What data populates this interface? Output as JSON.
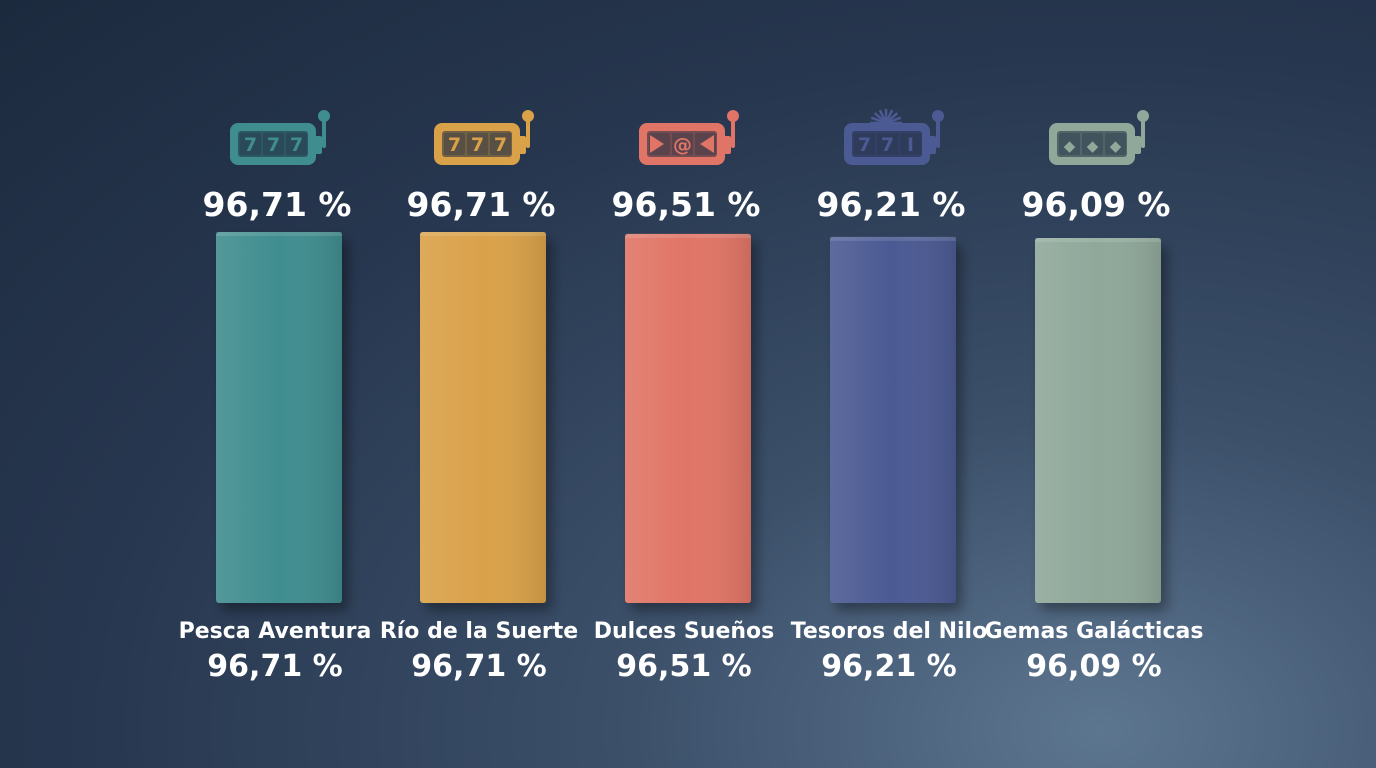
{
  "chart_data": {
    "type": "bar",
    "categories": [
      "Pesca Aventura",
      "Río de la Suerte",
      "Dulces Sueños",
      "Tesoros del Nilo",
      "Gemas Galácticas"
    ],
    "values": [
      96.71,
      96.71,
      96.51,
      96.21,
      96.09
    ],
    "value_labels": [
      "96,71 %",
      "96,71 %",
      "96,51 %",
      "96,21 %",
      "96,09 %"
    ],
    "colors": [
      "#3f8d8f",
      "#d9a148",
      "#e07466",
      "#4c5a93",
      "#8fa89a"
    ],
    "icons": [
      "slot-machine-777-icon",
      "slot-machine-777-icon",
      "slot-machine-candy-icon",
      "slot-machine-771-icon",
      "slot-machine-gems-icon"
    ],
    "title": "",
    "xlabel": "",
    "ylabel": "",
    "grid": false,
    "legend": "none"
  }
}
